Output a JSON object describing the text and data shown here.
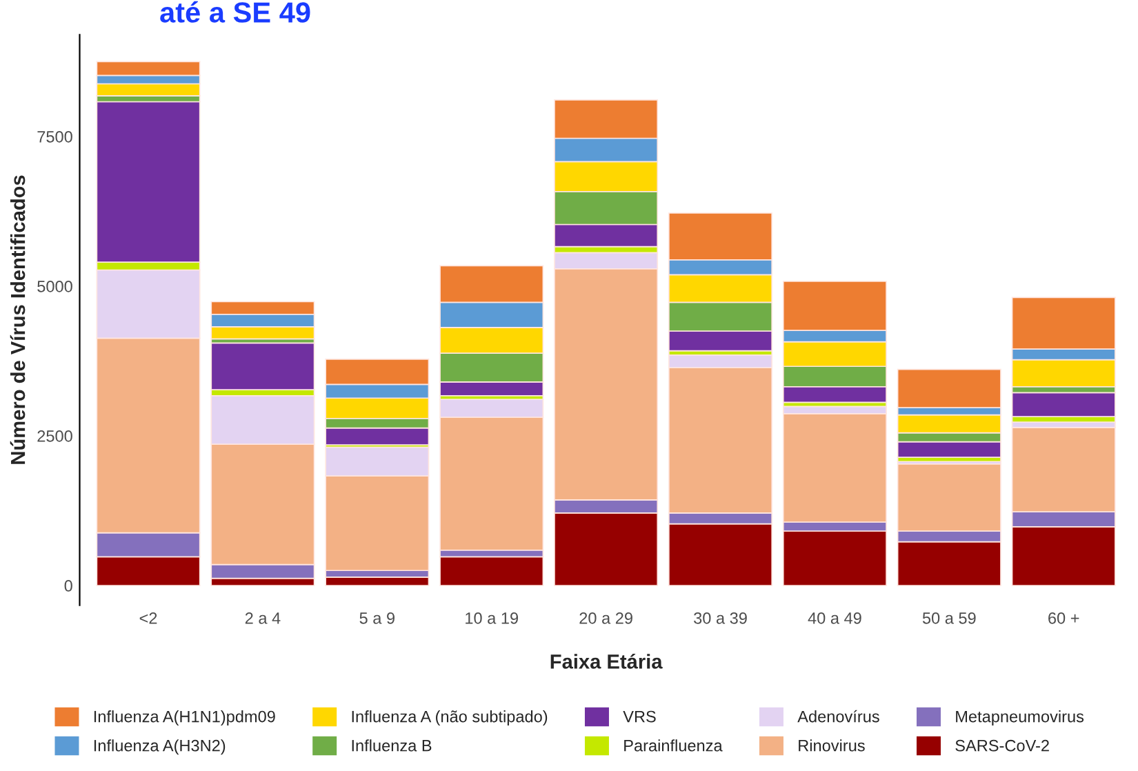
{
  "chart_data": {
    "type": "bar",
    "stacked": true,
    "title": "até a SE 49",
    "xlabel": "Faixa Etária",
    "ylabel": "Número de Vírus Identificados",
    "categories": [
      "<2",
      "2 a 4",
      "5 a 9",
      "10 a 19",
      "20 a 29",
      "30 a 39",
      "40 a 49",
      "50 a 59",
      "60 +"
    ],
    "series": [
      {
        "name": "SARS-CoV-2",
        "color": "#960000",
        "values": [
          480,
          120,
          140,
          480,
          1210,
          1030,
          910,
          730,
          980
        ]
      },
      {
        "name": "Metapneumovirus",
        "color": "#8470bd",
        "values": [
          400,
          230,
          110,
          110,
          220,
          180,
          150,
          180,
          250
        ]
      },
      {
        "name": "Rinovirus",
        "color": "#f3b185",
        "values": [
          3250,
          2010,
          1580,
          2220,
          3860,
          2430,
          1810,
          1120,
          1410
        ]
      },
      {
        "name": "Adenovírus",
        "color": "#e3d3f2",
        "values": [
          1140,
          810,
          480,
          300,
          270,
          210,
          120,
          40,
          90
        ]
      },
      {
        "name": "Parainfluenza",
        "color": "#c4e800",
        "values": [
          130,
          100,
          40,
          60,
          100,
          70,
          70,
          70,
          90
        ]
      },
      {
        "name": "VRS",
        "color": "#7030a0",
        "values": [
          2680,
          780,
          280,
          230,
          370,
          330,
          260,
          260,
          400
        ]
      },
      {
        "name": "Influenza B",
        "color": "#70ad47",
        "values": [
          100,
          70,
          160,
          480,
          550,
          480,
          340,
          150,
          100
        ]
      },
      {
        "name": "Influenza A (não subtipado)",
        "color": "#ffd700",
        "values": [
          200,
          200,
          340,
          430,
          500,
          460,
          410,
          300,
          450
        ]
      },
      {
        "name": "Influenza A(H3N2)",
        "color": "#5b9bd5",
        "values": [
          140,
          210,
          230,
          420,
          390,
          250,
          190,
          120,
          180
        ]
      },
      {
        "name": "Influenza A(H1N1)pdm09",
        "color": "#ed7d31",
        "values": [
          230,
          210,
          420,
          610,
          640,
          780,
          820,
          640,
          860
        ]
      }
    ],
    "ylim": [
      -330,
      9200
    ],
    "yticks": [
      0,
      2500,
      5000,
      7500
    ],
    "grid": false,
    "legend": "bottom"
  }
}
